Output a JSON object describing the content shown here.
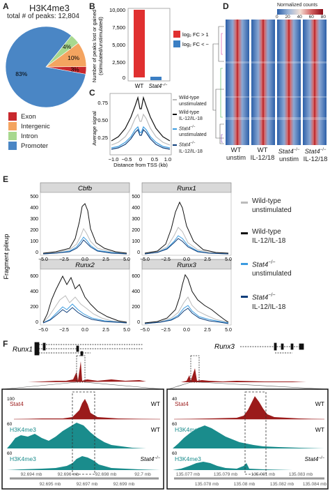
{
  "panelA": {
    "label": "A",
    "title": "H3K4me3",
    "subtitle": "total # of peaks: 12,804",
    "slices": [
      {
        "name": "Exon",
        "value": 3,
        "label": "3%",
        "color": "#c8282d"
      },
      {
        "name": "Intergenic",
        "value": 10,
        "label": "10%",
        "color": "#f4a460"
      },
      {
        "name": "Intron",
        "value": 4,
        "label": "4%",
        "color": "#a8d88f"
      },
      {
        "name": "Promoter",
        "value": 83,
        "label": "83%",
        "color": "#4a86c5"
      }
    ]
  },
  "panelB": {
    "label": "B",
    "ylabel": "Number of peaks lost or gained",
    "ylabel2": "(stimulated/unstimulated)",
    "ticks": [
      "10,000",
      "7,500",
      "5,000",
      "2,500",
      "0"
    ],
    "cats": [
      "WT",
      "Stat4"
    ],
    "cat2_sup": "−/−",
    "legend": [
      {
        "text": "log₂ FC > 1",
        "color": "#e03030"
      },
      {
        "text": "log₂ FC < −1",
        "color": "#3b7fc4"
      }
    ]
  },
  "panelC": {
    "label": "C",
    "ylabel": "Average signal",
    "xlabel": "Distance from TSS (kb)",
    "yticks": [
      "0.75",
      "0.50",
      "0.25"
    ],
    "xticks": [
      "−1.0",
      "−0.5",
      "0",
      "0.5",
      "1.0"
    ],
    "legend": [
      {
        "l1": "Wild-type",
        "l2": "unstimulated",
        "color": "#bbbbbb"
      },
      {
        "l1": "Wild-type",
        "l2": "IL-12/IL-18",
        "color": "#111111"
      },
      {
        "l1": "Stat4",
        "sup": "−/−",
        "l2": "unstimulated",
        "color": "#3a9be0"
      },
      {
        "l1": "Stat4",
        "sup": "−/−",
        "l2": "IL-12/IL-18",
        "color": "#0d3d7a"
      }
    ]
  },
  "panelD": {
    "label": "D",
    "scale_title": "Normalized counts",
    "scale_ticks": [
      "0",
      "20",
      "40",
      "60",
      "80"
    ],
    "cols": [
      {
        "l1": "WT",
        "l2": "unstim"
      },
      {
        "l1": "WT",
        "l2": "IL-12/18"
      },
      {
        "l1": "Stat4",
        "sup": "−/−",
        "l2": "unstim"
      },
      {
        "l1": "Stat4",
        "sup": "−/−",
        "l2": "IL-12/18"
      }
    ]
  },
  "panelE": {
    "label": "E",
    "ylabel": "Fragment pileup",
    "genes": [
      "Cbfb",
      "Runx1",
      "Runx2",
      "Runx3"
    ],
    "yticks_top": [
      "500",
      "400",
      "300",
      "200",
      "100",
      "0"
    ],
    "yticks_bottom": [
      "600",
      "400",
      "200",
      "0"
    ],
    "xticks": [
      "−5.0",
      "−2.5",
      "0.0",
      "2.5",
      "5.0"
    ],
    "legend": [
      {
        "l1": "Wild-type",
        "l2": "unstimulated",
        "color": "#bbbbbb"
      },
      {
        "l1": "Wild-type",
        "l2": "IL-12/IL-18",
        "color": "#111111"
      },
      {
        "l1": "Stat4",
        "sup": "−/−",
        "l2": "unstimulated",
        "color": "#3a9be0"
      },
      {
        "l1": "Stat4",
        "sup": "−/−",
        "l2": "IL-12/IL-18",
        "color": "#0d3d7a"
      }
    ]
  },
  "panelF": {
    "label": "F",
    "gene1": "Runx1",
    "gene2": "Runx3",
    "left": {
      "tracks": [
        {
          "name": "Stat4",
          "tag": "WT",
          "tick": "100",
          "color": "#9b1b1b"
        },
        {
          "name": "H3K4me3",
          "tag": "WT",
          "tick": "60",
          "color": "#1a8c8c"
        },
        {
          "name": "H3K4me3",
          "tag": "Stat4",
          "tag_sup": "−/−",
          "tick": "60",
          "color": "#1a8c8c"
        }
      ],
      "axis_top": [
        "92.694 mb",
        "92.696 mb",
        "92.698 mb",
        "92.7 mb"
      ],
      "axis_bottom": [
        "92.695 mb",
        "92.697 mb",
        "92.699 mb"
      ]
    },
    "right": {
      "tracks": [
        {
          "name": "Stat4",
          "tag": "WT",
          "tick": "40",
          "color": "#9b1b1b"
        },
        {
          "name": "H3K4me3",
          "tag": "WT",
          "tick": "60",
          "color": "#1a8c8c"
        },
        {
          "name": "H3K4me3",
          "tag": "Stat4",
          "tag_sup": "−/−",
          "tick": "60",
          "color": "#1a8c8c"
        }
      ],
      "axis_top": [
        "135.077 mb",
        "135.079 mb",
        "135.081 mb",
        "135.083 mb"
      ],
      "axis_bottom": [
        "135.078 mb",
        "135.08 mb",
        "135.082 mb",
        "135.084 mb"
      ]
    }
  }
}
